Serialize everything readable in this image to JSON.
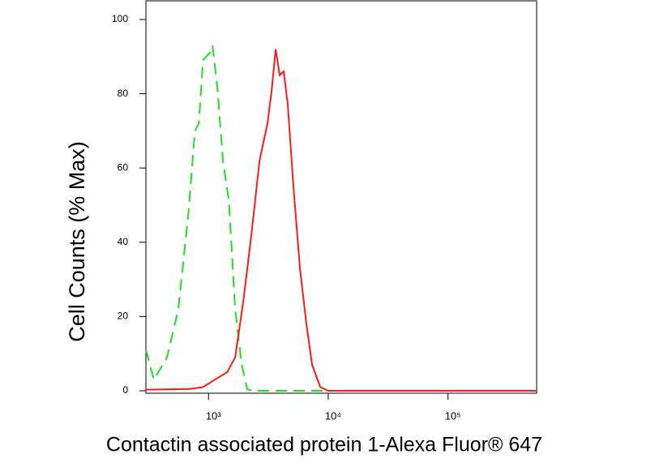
{
  "chart_data": {
    "type": "line",
    "x_label": "Contactin associated protein 1-Alexa Fluor® 647",
    "y_label": "Cell Counts (% Max)",
    "xscale": "log",
    "xlim": [
      300,
      550000
    ],
    "ylim": [
      0,
      100
    ],
    "xticks": [
      {
        "value": 1000,
        "label": "10³"
      },
      {
        "value": 10000,
        "label": "10⁴"
      },
      {
        "value": 100000,
        "label": "10⁵"
      }
    ],
    "yticks": [
      0,
      20,
      40,
      60,
      80,
      100
    ],
    "series": [
      {
        "color": "#22dd22",
        "dash": true,
        "x": [
          300,
          350,
          450,
          560,
          680,
          770,
          830,
          900,
          1020,
          1080,
          1190,
          1320,
          1480,
          1670,
          1890,
          2110,
          2470,
          550000
        ],
        "values": [
          11,
          3,
          9,
          22,
          48,
          70,
          72,
          89,
          91,
          93,
          81,
          62,
          51,
          22,
          7,
          0.4,
          0,
          0
        ]
      },
      {
        "color": "#ff1a1a",
        "dash": false,
        "x": [
          300,
          700,
          900,
          1130,
          1430,
          1670,
          1950,
          2280,
          2670,
          3110,
          3370,
          3640,
          3930,
          4250,
          4590,
          5120,
          5800,
          6570,
          7330,
          8560,
          10000,
          550000
        ],
        "values": [
          0.3,
          0.5,
          1,
          3,
          5,
          9,
          24,
          42,
          62,
          72,
          81,
          92,
          85,
          86,
          77,
          55,
          33,
          18,
          7,
          1,
          0,
          0
        ]
      }
    ]
  }
}
